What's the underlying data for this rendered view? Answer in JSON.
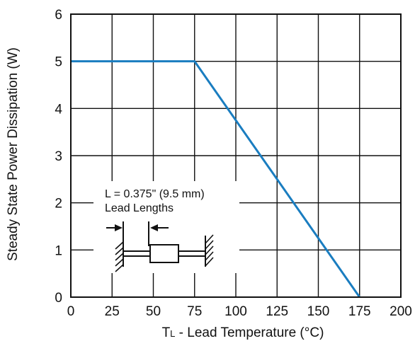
{
  "chart_data": {
    "type": "line",
    "title": "",
    "xlabel": "TL - Lead Temperature (°C)",
    "xlabel_main": "T",
    "xlabel_sub": "L",
    "xlabel_rest": " - Lead Temperature (°C)",
    "ylabel": "Steady State Power Dissipation (W)",
    "xlim": [
      0,
      200
    ],
    "ylim": [
      0,
      6
    ],
    "x_ticks": [
      0,
      25,
      50,
      75,
      100,
      125,
      150,
      175,
      200
    ],
    "y_ticks": [
      0,
      1,
      2,
      3,
      4,
      5,
      6
    ],
    "x_tick_labels": [
      "0",
      "25",
      "50",
      "75",
      "100",
      "125",
      "150",
      "175",
      "200"
    ],
    "y_tick_labels": [
      "0",
      "1",
      "2",
      "3",
      "4",
      "5",
      "6"
    ],
    "grid": true,
    "series": [
      {
        "color": "#1a7dc0",
        "x": [
          0,
          75,
          175
        ],
        "y": [
          5,
          5,
          0
        ]
      }
    ],
    "annotations": [
      "L = 0.375\" (9.5 mm)",
      "Lead Lengths"
    ]
  }
}
